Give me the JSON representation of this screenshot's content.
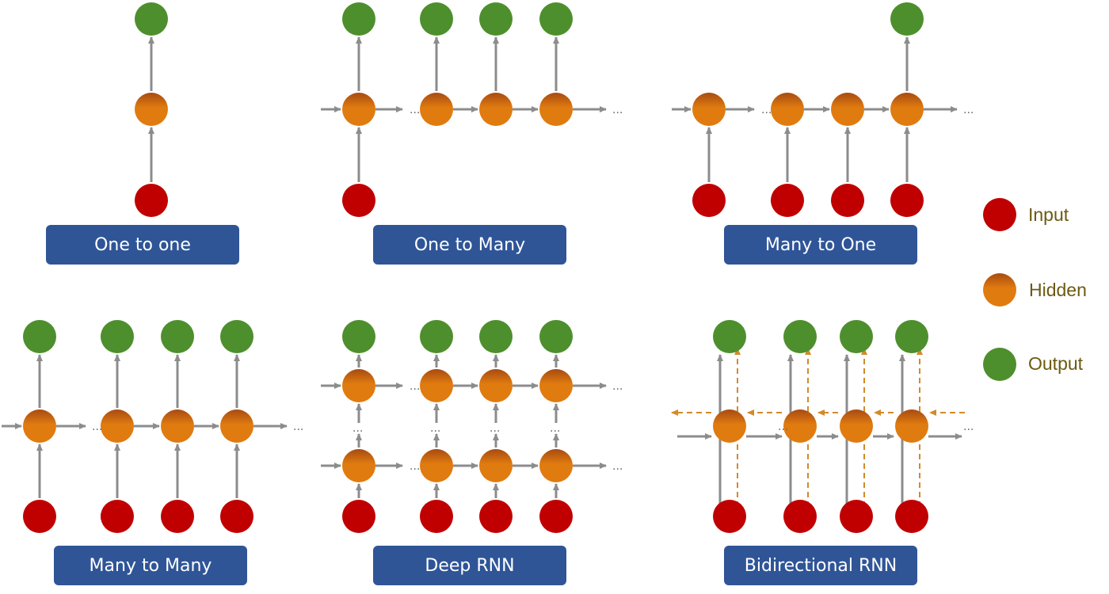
{
  "colors": {
    "input": "#C00000",
    "hidden": "#E07B10",
    "hidden_top": "#A84B12",
    "output": "#4E8F2D",
    "arrow": "#8C8C8C",
    "backward_arrow": "#D28A2A",
    "label_bg": "#2F5597",
    "label_text": "#FFFFFF",
    "legend_text": "#6B5A11"
  },
  "panels": {
    "one_to_one": "One to one",
    "one_to_many": "One to Many",
    "many_to_one": "Many to One",
    "many_to_many": "Many to Many",
    "deep_rnn": "Deep RNN",
    "bidirectional_rnn": "Bidirectional RNN"
  },
  "legend": {
    "input": "Input",
    "hidden": "Hidden",
    "output": "Output"
  },
  "ellipsis": "..."
}
